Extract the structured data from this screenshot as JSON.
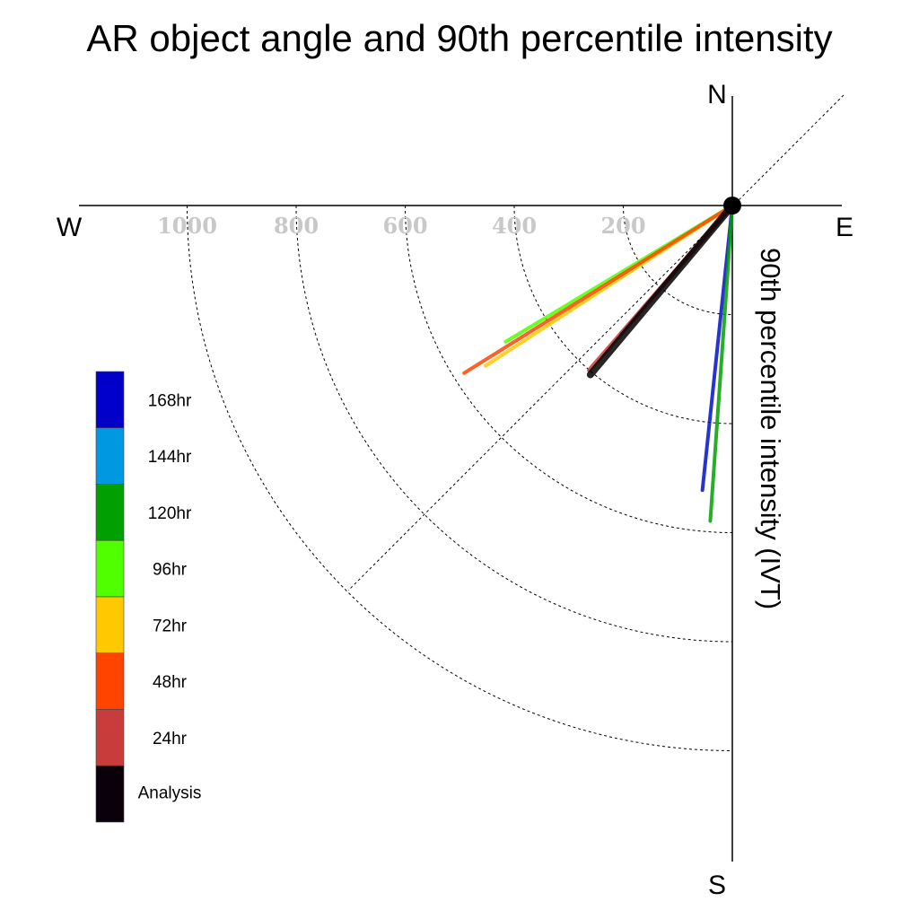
{
  "chart_data": {
    "type": "polar-vector",
    "title": "AR object angle and 90th percentile intensity",
    "ylabel": "90th percentile intensity (IVT)",
    "compass": {
      "north": "N",
      "south": "S",
      "east": "E",
      "west": "W"
    },
    "radial_ticks": [
      200,
      400,
      600,
      800,
      1000
    ],
    "radial_tick_labels": [
      "200",
      "400",
      "600",
      "800",
      "1000"
    ],
    "rlim": [
      0,
      1200
    ],
    "grid": true,
    "legend_position": "left",
    "series": [
      {
        "name": "168hr",
        "color": "#0010c8",
        "legend_color": "#0000c8",
        "angle_deg": 186,
        "intensity": 525,
        "stroke": 4
      },
      {
        "name": "144hr",
        "color": "#0098e0",
        "legend_color": "#0098e0",
        "angle_deg": 221,
        "intensity": 310,
        "stroke": 4
      },
      {
        "name": "120hr",
        "color": "#00a000",
        "legend_color": "#00a000",
        "angle_deg": 184,
        "intensity": 580,
        "stroke": 4
      },
      {
        "name": "96hr",
        "color": "#50ff00",
        "legend_color": "#50ff00",
        "angle_deg": 239,
        "intensity": 485,
        "stroke": 4
      },
      {
        "name": "72hr",
        "color": "#ffc800",
        "legend_color": "#ffc800",
        "angle_deg": 237,
        "intensity": 540,
        "stroke": 4
      },
      {
        "name": "48hr",
        "color": "#ff4400",
        "legend_color": "#ff4400",
        "angle_deg": 238,
        "intensity": 580,
        "stroke": 4
      },
      {
        "name": "24hr",
        "color": "#c83c3c",
        "legend_color": "#c83c3c",
        "angle_deg": 221,
        "intensity": 400,
        "stroke": 5
      },
      {
        "name": "Analysis",
        "color": "#000000",
        "legend_color": "#0a000a",
        "angle_deg": 220,
        "intensity": 405,
        "stroke": 8
      }
    ]
  }
}
